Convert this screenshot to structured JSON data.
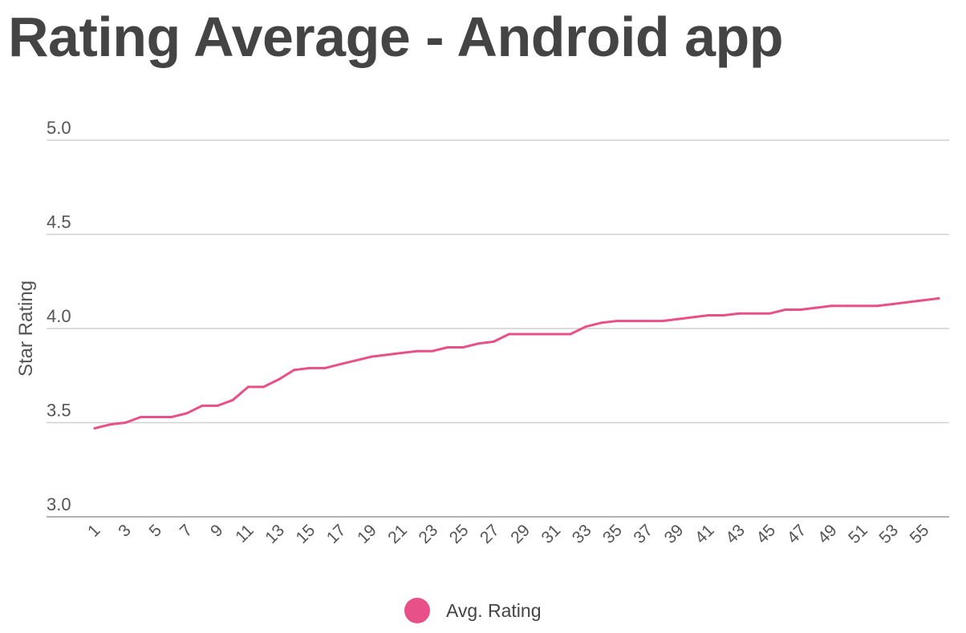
{
  "chart_data": {
    "type": "line",
    "title": "Rating Average - Android app",
    "ylabel": "Star Rating",
    "xlabel": "",
    "ylim": [
      3.0,
      5.0
    ],
    "yticks": [
      "3.0",
      "3.5",
      "4.0",
      "4.5",
      "5.0"
    ],
    "x": [
      1,
      2,
      3,
      4,
      5,
      6,
      7,
      8,
      9,
      10,
      11,
      12,
      13,
      14,
      15,
      16,
      17,
      18,
      19,
      20,
      21,
      22,
      23,
      24,
      25,
      26,
      27,
      28,
      29,
      30,
      31,
      32,
      33,
      34,
      35,
      36,
      37,
      38,
      39,
      40,
      41,
      42,
      43,
      44,
      45,
      46,
      47,
      48,
      49,
      50,
      51,
      52,
      53,
      54,
      55,
      56
    ],
    "xtick_labels": [
      "1",
      "3",
      "5",
      "7",
      "9",
      "11",
      "13",
      "15",
      "17",
      "19",
      "21",
      "23",
      "25",
      "27",
      "29",
      "31",
      "33",
      "35",
      "37",
      "39",
      "41",
      "43",
      "45",
      "47",
      "49",
      "51",
      "53",
      "55"
    ],
    "series": [
      {
        "name": "Avg. Rating",
        "color": "#e8508a",
        "values": [
          3.47,
          3.49,
          3.5,
          3.53,
          3.53,
          3.53,
          3.55,
          3.59,
          3.59,
          3.62,
          3.69,
          3.69,
          3.73,
          3.78,
          3.79,
          3.79,
          3.81,
          3.83,
          3.85,
          3.86,
          3.87,
          3.88,
          3.88,
          3.9,
          3.9,
          3.92,
          3.93,
          3.97,
          3.97,
          3.97,
          3.97,
          3.97,
          4.01,
          4.03,
          4.04,
          4.04,
          4.04,
          4.04,
          4.05,
          4.06,
          4.07,
          4.07,
          4.08,
          4.08,
          4.08,
          4.1,
          4.1,
          4.11,
          4.12,
          4.12,
          4.12,
          4.12,
          4.13,
          4.14,
          4.15,
          4.16
        ]
      }
    ],
    "legend": {
      "position": "bottom",
      "label": "Avg. Rating"
    },
    "grid": true
  }
}
